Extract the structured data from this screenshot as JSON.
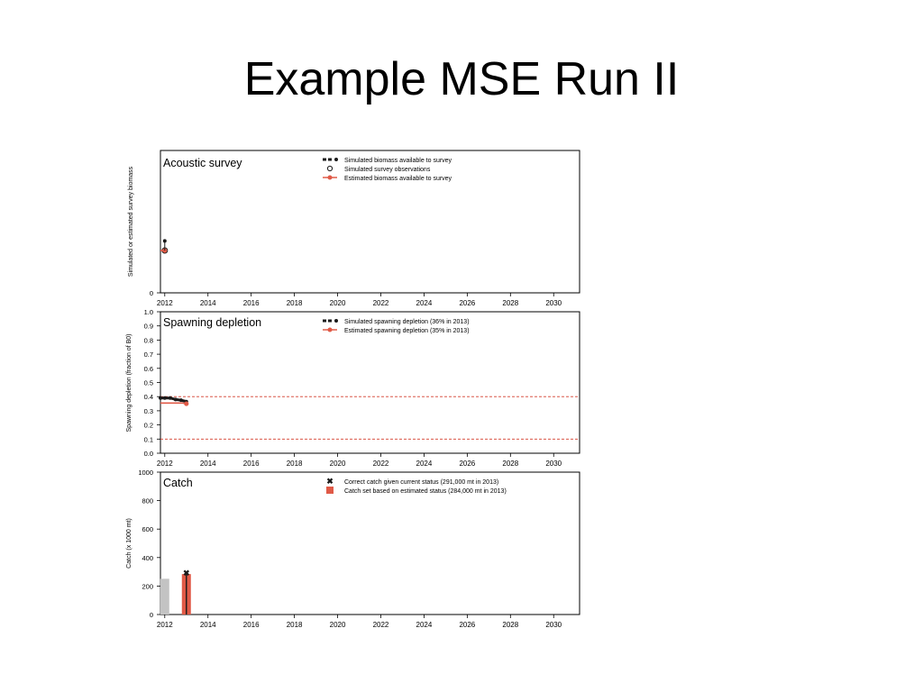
{
  "slide": {
    "title": "Example MSE Run II"
  },
  "colors": {
    "simulated": "#1a1a1a",
    "estimated": "#e05a47",
    "historical_catch": "#c3c3c3",
    "frame": "#000000",
    "reference_line": "#d43c2c"
  },
  "chart_data": [
    {
      "type": "line",
      "title": "Acoustic survey",
      "xlabel": "",
      "ylabel": "Simulated or estimated survey biomass",
      "xlim": [
        2011.8,
        2031.2
      ],
      "ylim": [
        0,
        3.7
      ],
      "x_ticks": [
        2012,
        2014,
        2016,
        2018,
        2020,
        2022,
        2024,
        2026,
        2028,
        2030
      ],
      "y_ticks": [
        0
      ],
      "grid": false,
      "legend_position": "top-center",
      "series": [
        {
          "name": "Simulated biomass available to survey",
          "style": "dashed-dots",
          "color": "#1a1a1a",
          "points": [
            [
              2012,
              1.35
            ]
          ]
        },
        {
          "name": "Simulated survey observations",
          "style": "open-circle",
          "color": "#1a1a1a",
          "points": [
            [
              2012,
              1.1
            ]
          ]
        },
        {
          "name": "Estimated biomass available to survey",
          "style": "line-dots",
          "color": "#e05a47",
          "points": [
            [
              2011.8,
              1.1
            ],
            [
              2012,
              1.1
            ]
          ]
        }
      ]
    },
    {
      "type": "line",
      "title": "Spawning depletion",
      "xlabel": "",
      "ylabel": "Spawning depletion (fraction of B0)",
      "xlim": [
        2011.8,
        2031.2
      ],
      "ylim": [
        0,
        1
      ],
      "x_ticks": [
        2012,
        2014,
        2016,
        2018,
        2020,
        2022,
        2024,
        2026,
        2028,
        2030
      ],
      "y_ticks": [
        "0.0",
        "0.1",
        "0.2",
        "0.3",
        "0.4",
        "0.5",
        "0.6",
        "0.7",
        "0.8",
        "0.9",
        "1.0"
      ],
      "reference_lines": [
        0.4,
        0.1
      ],
      "grid": false,
      "legend_position": "top-center",
      "series": [
        {
          "name": "Simulated spawning depletion (36% in 2013)",
          "style": "dashed-dots",
          "color": "#1a1a1a",
          "points": [
            [
              2011.8,
              0.39
            ],
            [
              2012,
              0.39
            ],
            [
              2012.25,
              0.39
            ],
            [
              2012.5,
              0.38
            ],
            [
              2012.75,
              0.375
            ],
            [
              2013,
              0.365
            ]
          ]
        },
        {
          "name": "Estimated spawning depletion (35% in 2013)",
          "style": "line-dots",
          "color": "#e05a47",
          "points": [
            [
              2011.8,
              0.355
            ],
            [
              2012,
              0.355
            ],
            [
              2012.5,
              0.355
            ],
            [
              2012.8,
              0.355
            ],
            [
              2013,
              0.35
            ]
          ]
        }
      ]
    },
    {
      "type": "bar",
      "title": "Catch",
      "xlabel": "",
      "ylabel": "Catch (x 1000 mt)",
      "xlim": [
        2011.8,
        2031.2
      ],
      "ylim": [
        0,
        1000
      ],
      "x_ticks": [
        2012,
        2014,
        2016,
        2018,
        2020,
        2022,
        2024,
        2026,
        2028,
        2030
      ],
      "y_ticks": [
        0,
        200,
        400,
        600,
        800,
        1000
      ],
      "grid": false,
      "legend_position": "top-center",
      "bars": [
        {
          "x": 2012,
          "value": 251,
          "kind": "historical"
        },
        {
          "x": 2013,
          "value": 284,
          "kind": "estimated"
        }
      ],
      "markers": [
        {
          "x": 2013,
          "value": 291
        }
      ],
      "legend": [
        {
          "name": "Correct catch given current status (291,000 mt in 2013)",
          "style": "x-marker"
        },
        {
          "name": "Catch set based on estimated status (284,000 mt in 2013)",
          "style": "square"
        }
      ]
    }
  ]
}
